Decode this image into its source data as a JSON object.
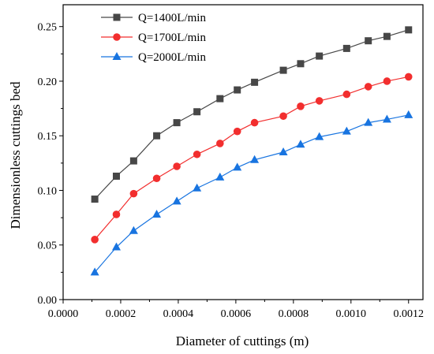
{
  "chart_data": {
    "type": "line",
    "title": "",
    "xlabel": "Diameter of cuttings (m)",
    "ylabel": "Dimensionless cuttings bed",
    "xlim": [
      0.0,
      0.00125
    ],
    "ylim": [
      0.0,
      0.27
    ],
    "x_ticks": [
      "0.0000",
      "0.0002",
      "0.0004",
      "0.0006",
      "0.0008",
      "0.0010",
      "0.0012"
    ],
    "y_ticks": [
      "0.00",
      "0.05",
      "0.10",
      "0.15",
      "0.20",
      "0.25"
    ],
    "legend_position": "top-left",
    "grid": false,
    "x": [
      0.00011,
      0.000185,
      0.000245,
      0.000325,
      0.000395,
      0.000465,
      0.000545,
      0.000605,
      0.000665,
      0.000765,
      0.000825,
      0.00089,
      0.000985,
      0.00106,
      0.001125,
      0.0012
    ],
    "series": [
      {
        "name": "Q=1400L/min",
        "marker": "square",
        "color": "#474747",
        "values": [
          0.092,
          0.113,
          0.127,
          0.15,
          0.162,
          0.172,
          0.184,
          0.192,
          0.199,
          0.21,
          0.216,
          0.223,
          0.23,
          0.237,
          0.241,
          0.247
        ]
      },
      {
        "name": "Q=1700L/min",
        "marker": "circle",
        "color": "#f22e2e",
        "values": [
          0.055,
          0.078,
          0.097,
          0.111,
          0.122,
          0.133,
          0.143,
          0.154,
          0.162,
          0.168,
          0.177,
          0.182,
          0.188,
          0.195,
          0.2,
          0.204
        ]
      },
      {
        "name": "Q=2000L/min",
        "marker": "triangle",
        "color": "#1874e0",
        "values": [
          0.025,
          0.048,
          0.063,
          0.078,
          0.09,
          0.102,
          0.112,
          0.121,
          0.128,
          0.135,
          0.142,
          0.149,
          0.154,
          0.162,
          0.165,
          0.169
        ]
      }
    ]
  }
}
